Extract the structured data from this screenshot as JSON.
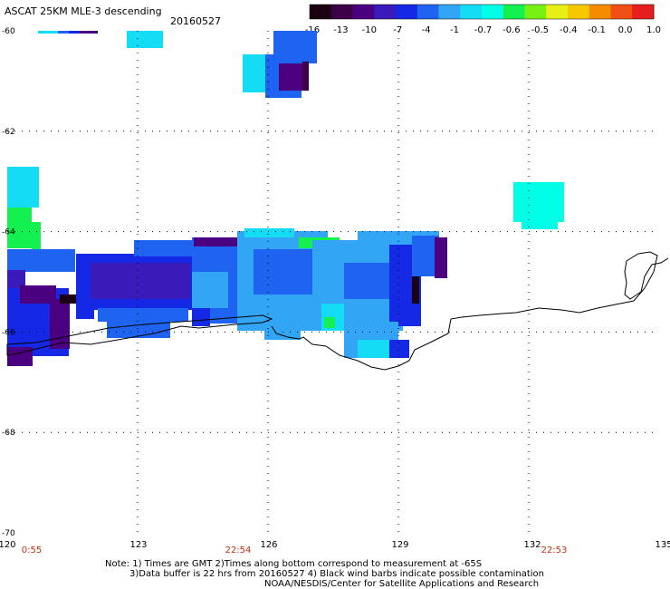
{
  "title": "ASCAT 25KM MLE-3 descending",
  "date": "20160527",
  "colorbar": {
    "labels": [
      "-16",
      "-13",
      "-10",
      "-7",
      "-4",
      "-1",
      "-0.7",
      "-0.6",
      "-0.5",
      "-0.4",
      "-0.1",
      "0.0",
      "1.0"
    ],
    "colors": [
      "#1a0010",
      "#3c0048",
      "#4b0082",
      "#3a1ab8",
      "#1428e6",
      "#1e64f0",
      "#32a6f5",
      "#14dcf5",
      "#00ffe6",
      "#14f050",
      "#78f014",
      "#e6f014",
      "#f5c800",
      "#f58c00",
      "#f05014",
      "#e61e1e"
    ]
  },
  "map": {
    "lat_range": [
      -70,
      -60
    ],
    "lon_range": [
      120,
      135
    ],
    "lat_ticks": [
      "-60",
      "-62",
      "-64",
      "-66",
      "-68",
      "-70"
    ],
    "lon_ticks": [
      "120",
      "123",
      "126",
      "129",
      "132",
      "135"
    ],
    "time_labels": [
      "0:55",
      "22:54",
      "22:53"
    ],
    "colors": {
      "land_outline": "#000000",
      "gridline": "#000000",
      "time_label": "#c03010"
    }
  },
  "notes": [
    "Note: 1) Times are GMT 2)Times along bottom correspond to measurement at -65S",
    "3)Data buffer is 22 hrs from 20160527 4) Black wind barbs indicate possible contamination",
    "NOAA/NESDIS/Center for Satellite Applications and Research"
  ]
}
